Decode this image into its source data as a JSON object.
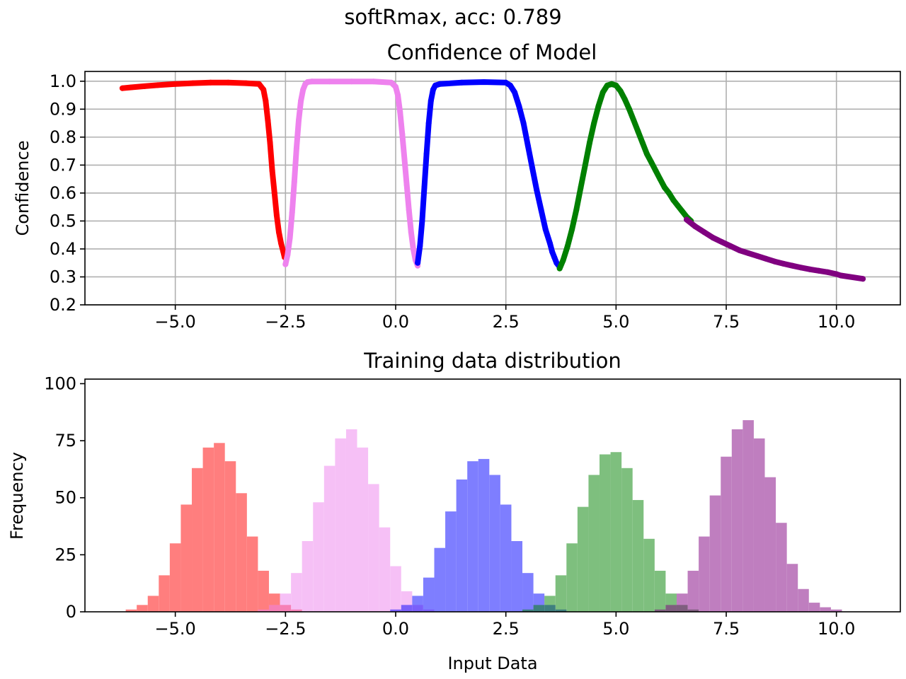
{
  "figure": {
    "suptitle": "softRmax, acc: 0.789"
  },
  "colors": {
    "class0": "#ff0000",
    "class1": "#ee82ee",
    "class2": "#0000ff",
    "class3": "#008000",
    "class4": "#800080",
    "grid": "#b0b0b0"
  },
  "chart_data": [
    {
      "type": "scatter",
      "title": "Confidence of Model",
      "xlabel": "",
      "ylabel": "Confidence",
      "xlim": [
        -7.05,
        11.45
      ],
      "ylim": [
        0.2,
        1.035
      ],
      "grid": true,
      "xticks": [
        -5.0,
        -2.5,
        0.0,
        2.5,
        5.0,
        7.5,
        10.0
      ],
      "xtick_labels": [
        "−5.0",
        "−2.5",
        "0.0",
        "2.5",
        "5.0",
        "7.5",
        "10.0"
      ],
      "yticks": [
        0.2,
        0.3,
        0.4,
        0.5,
        0.6,
        0.7,
        0.8,
        0.9,
        1.0
      ],
      "ytick_labels": [
        "0.2",
        "0.3",
        "0.4",
        "0.5",
        "0.6",
        "0.7",
        "0.8",
        "0.9",
        "1.0"
      ],
      "series": [
        {
          "color_key": "class0",
          "x": [
            -6.2,
            -6.0,
            -5.7,
            -5.4,
            -5.0,
            -4.6,
            -4.2,
            -3.8,
            -3.4,
            -3.1,
            -3.0,
            -2.95,
            -2.9,
            -2.85,
            -2.8,
            -2.75,
            -2.7,
            -2.65,
            -2.6,
            -2.55,
            -2.52
          ],
          "y": [
            0.975,
            0.978,
            0.982,
            0.986,
            0.99,
            0.993,
            0.995,
            0.995,
            0.993,
            0.99,
            0.97,
            0.93,
            0.86,
            0.78,
            0.68,
            0.6,
            0.52,
            0.46,
            0.42,
            0.39,
            0.37
          ]
        },
        {
          "color_key": "class1",
          "x": [
            -2.5,
            -2.45,
            -2.4,
            -2.35,
            -2.3,
            -2.25,
            -2.2,
            -2.15,
            -2.1,
            -2.05,
            -2.0,
            -1.9,
            -1.5,
            -1.0,
            -0.5,
            -0.1,
            0.0,
            0.05,
            0.1,
            0.15,
            0.2,
            0.25,
            0.3,
            0.35,
            0.4,
            0.45,
            0.5
          ],
          "y": [
            0.345,
            0.38,
            0.44,
            0.53,
            0.64,
            0.76,
            0.86,
            0.93,
            0.97,
            0.99,
            0.997,
            0.999,
            0.999,
            0.999,
            0.999,
            0.995,
            0.98,
            0.95,
            0.89,
            0.81,
            0.72,
            0.63,
            0.54,
            0.46,
            0.4,
            0.36,
            0.34
          ]
        },
        {
          "color_key": "class2",
          "x": [
            0.5,
            0.55,
            0.6,
            0.65,
            0.7,
            0.75,
            0.8,
            0.85,
            0.9,
            1.0,
            1.5,
            2.0,
            2.5,
            2.6,
            2.7,
            2.8,
            2.9,
            3.0,
            3.1,
            3.2,
            3.3,
            3.4,
            3.5,
            3.55,
            3.6,
            3.65,
            3.7
          ],
          "y": [
            0.35,
            0.41,
            0.5,
            0.62,
            0.74,
            0.85,
            0.93,
            0.97,
            0.985,
            0.99,
            0.995,
            0.997,
            0.995,
            0.985,
            0.96,
            0.91,
            0.85,
            0.77,
            0.69,
            0.61,
            0.54,
            0.47,
            0.42,
            0.39,
            0.37,
            0.35,
            0.34
          ]
        },
        {
          "color_key": "class3",
          "x": [
            3.72,
            3.8,
            3.9,
            4.0,
            4.1,
            4.2,
            4.3,
            4.4,
            4.5,
            4.6,
            4.7,
            4.8,
            4.9,
            5.0,
            5.1,
            5.2,
            5.3,
            5.4,
            5.5,
            5.6,
            5.7,
            5.8,
            5.9,
            6.0,
            6.1,
            6.2,
            6.3,
            6.4,
            6.5,
            6.6,
            6.7
          ],
          "y": [
            0.33,
            0.36,
            0.41,
            0.47,
            0.54,
            0.62,
            0.7,
            0.78,
            0.85,
            0.91,
            0.96,
            0.985,
            0.99,
            0.985,
            0.965,
            0.935,
            0.9,
            0.86,
            0.82,
            0.78,
            0.74,
            0.71,
            0.68,
            0.65,
            0.62,
            0.6,
            0.575,
            0.555,
            0.535,
            0.515,
            0.5
          ]
        },
        {
          "color_key": "class4",
          "x": [
            6.6,
            6.8,
            7.0,
            7.2,
            7.4,
            7.6,
            7.8,
            8.0,
            8.2,
            8.4,
            8.6,
            8.8,
            9.0,
            9.2,
            9.4,
            9.6,
            9.8,
            10.0,
            10.1,
            10.6
          ],
          "y": [
            0.505,
            0.48,
            0.46,
            0.44,
            0.425,
            0.41,
            0.395,
            0.385,
            0.375,
            0.365,
            0.355,
            0.347,
            0.34,
            0.333,
            0.327,
            0.322,
            0.317,
            0.31,
            0.305,
            0.293
          ]
        }
      ]
    },
    {
      "type": "bar",
      "title": "Training data distribution",
      "xlabel": "Input Data",
      "ylabel": "Frequency",
      "xlim": [
        -7.05,
        11.45
      ],
      "ylim": [
        0,
        102
      ],
      "grid": false,
      "xticks": [
        -5.0,
        -2.5,
        0.0,
        2.5,
        5.0,
        7.5,
        10.0
      ],
      "xtick_labels": [
        "−5.0",
        "−2.5",
        "0.0",
        "2.5",
        "5.0",
        "7.5",
        "10.0"
      ],
      "yticks": [
        0,
        25,
        50,
        75,
        100
      ],
      "ytick_labels": [
        "0",
        "25",
        "50",
        "75",
        "100"
      ],
      "series": [
        {
          "color_key": "class0",
          "x": [
            -6.0,
            -5.75,
            -5.5,
            -5.25,
            -5.0,
            -4.75,
            -4.5,
            -4.25,
            -4.0,
            -3.75,
            -3.5,
            -3.25,
            -3.0,
            -2.75,
            -2.5,
            -2.25
          ],
          "y": [
            1,
            3,
            7,
            16,
            30,
            47,
            63,
            72,
            74,
            66,
            52,
            33,
            18,
            8,
            3,
            1
          ]
        },
        {
          "color_key": "class1",
          "x": [
            -3.0,
            -2.75,
            -2.5,
            -2.25,
            -2.0,
            -1.75,
            -1.5,
            -1.25,
            -1.0,
            -0.75,
            -0.5,
            -0.25,
            0.0,
            0.25,
            0.5,
            0.75
          ],
          "y": [
            1,
            3,
            8,
            17,
            31,
            48,
            64,
            76,
            80,
            72,
            56,
            37,
            20,
            9,
            3,
            1
          ]
        },
        {
          "color_key": "class2",
          "x": [
            0.0,
            0.25,
            0.5,
            0.75,
            1.0,
            1.25,
            1.5,
            1.75,
            2.0,
            2.25,
            2.5,
            2.75,
            3.0,
            3.25,
            3.5,
            3.75
          ],
          "y": [
            1,
            3,
            7,
            15,
            28,
            44,
            58,
            66,
            67,
            60,
            47,
            31,
            17,
            8,
            3,
            1
          ]
        },
        {
          "color_key": "class3",
          "x": [
            3.0,
            3.25,
            3.5,
            3.75,
            4.0,
            4.25,
            4.5,
            4.75,
            5.0,
            5.25,
            5.5,
            5.75,
            6.0,
            6.25,
            6.5,
            6.75
          ],
          "y": [
            1,
            3,
            7,
            16,
            30,
            46,
            60,
            69,
            70,
            63,
            49,
            32,
            18,
            8,
            3,
            1
          ]
        },
        {
          "color_key": "class4",
          "x": [
            6.0,
            6.25,
            6.5,
            6.75,
            7.0,
            7.25,
            7.5,
            7.75,
            8.0,
            8.25,
            8.5,
            8.75,
            9.0,
            9.25,
            9.5,
            9.75,
            10.0
          ],
          "y": [
            1,
            3,
            8,
            18,
            33,
            51,
            68,
            80,
            84,
            76,
            59,
            39,
            21,
            10,
            4,
            2,
            1
          ]
        }
      ]
    }
  ]
}
